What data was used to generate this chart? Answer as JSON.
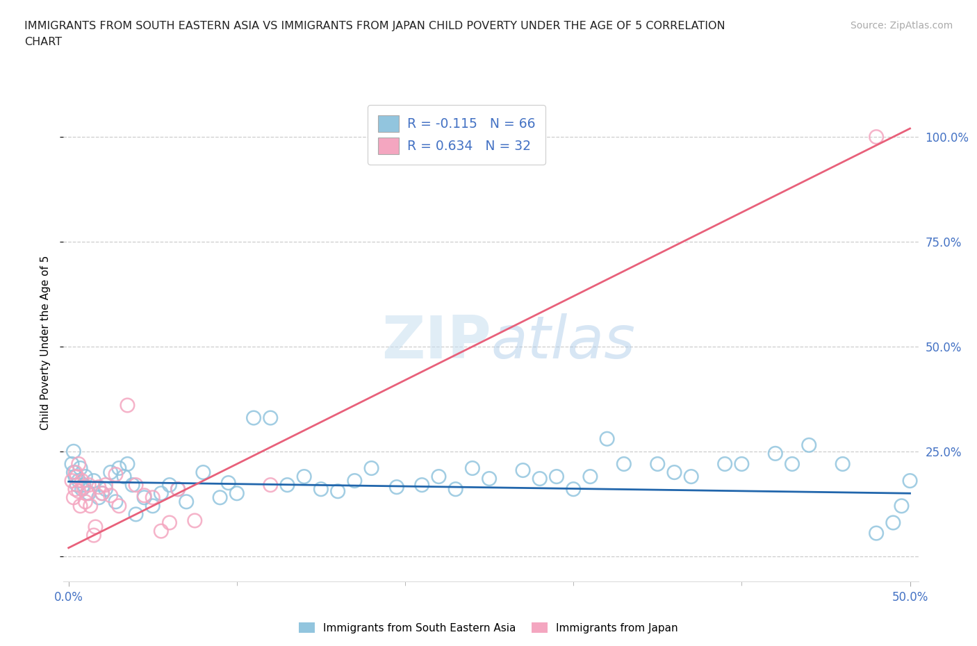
{
  "title_line1": "IMMIGRANTS FROM SOUTH EASTERN ASIA VS IMMIGRANTS FROM JAPAN CHILD POVERTY UNDER THE AGE OF 5 CORRELATION",
  "title_line2": "CHART",
  "source": "Source: ZipAtlas.com",
  "ylabel": "Child Poverty Under the Age of 5",
  "ytick_vals": [
    0.0,
    0.25,
    0.5,
    0.75,
    1.0
  ],
  "ytick_labels": [
    "",
    "25.0%",
    "50.0%",
    "75.0%",
    "100.0%"
  ],
  "xlim": [
    -0.003,
    0.505
  ],
  "ylim": [
    -0.06,
    1.08
  ],
  "color_blue": "#92c5de",
  "color_pink": "#f4a6c0",
  "color_blue_line": "#2166ac",
  "color_pink_line": "#e8607a",
  "color_axis_text": "#4472c4",
  "legend_label1": "R = -0.115   N = 66",
  "legend_label2": "R = 0.634   N = 32",
  "blue_line_x": [
    0.0,
    0.5
  ],
  "blue_line_y": [
    0.178,
    0.15
  ],
  "pink_line_x": [
    0.0,
    0.5
  ],
  "pink_line_y": [
    0.02,
    1.02
  ],
  "blue_x": [
    0.002,
    0.003,
    0.004,
    0.005,
    0.006,
    0.007,
    0.008,
    0.009,
    0.01,
    0.012,
    0.015,
    0.018,
    0.02,
    0.022,
    0.025,
    0.028,
    0.03,
    0.033,
    0.035,
    0.038,
    0.04,
    0.045,
    0.05,
    0.055,
    0.06,
    0.065,
    0.07,
    0.08,
    0.09,
    0.095,
    0.1,
    0.11,
    0.12,
    0.13,
    0.14,
    0.15,
    0.16,
    0.17,
    0.18,
    0.195,
    0.21,
    0.22,
    0.23,
    0.24,
    0.25,
    0.27,
    0.28,
    0.29,
    0.3,
    0.31,
    0.32,
    0.33,
    0.35,
    0.36,
    0.37,
    0.39,
    0.4,
    0.42,
    0.43,
    0.44,
    0.46,
    0.48,
    0.49,
    0.5,
    0.495,
    0.003
  ],
  "blue_y": [
    0.22,
    0.2,
    0.19,
    0.17,
    0.18,
    0.21,
    0.16,
    0.17,
    0.19,
    0.15,
    0.18,
    0.14,
    0.15,
    0.16,
    0.2,
    0.13,
    0.21,
    0.19,
    0.22,
    0.17,
    0.1,
    0.14,
    0.12,
    0.15,
    0.17,
    0.16,
    0.13,
    0.2,
    0.14,
    0.175,
    0.15,
    0.33,
    0.33,
    0.17,
    0.19,
    0.16,
    0.155,
    0.18,
    0.21,
    0.165,
    0.17,
    0.19,
    0.16,
    0.21,
    0.185,
    0.205,
    0.185,
    0.19,
    0.16,
    0.19,
    0.28,
    0.22,
    0.22,
    0.2,
    0.19,
    0.22,
    0.22,
    0.245,
    0.22,
    0.265,
    0.22,
    0.055,
    0.08,
    0.18,
    0.12,
    0.25
  ],
  "pink_x": [
    0.002,
    0.003,
    0.004,
    0.004,
    0.005,
    0.006,
    0.006,
    0.007,
    0.008,
    0.009,
    0.01,
    0.011,
    0.012,
    0.013,
    0.015,
    0.016,
    0.018,
    0.02,
    0.022,
    0.025,
    0.028,
    0.03,
    0.035,
    0.04,
    0.045,
    0.05,
    0.055,
    0.06,
    0.065,
    0.075,
    0.12,
    0.48
  ],
  "pink_y": [
    0.18,
    0.14,
    0.2,
    0.16,
    0.19,
    0.155,
    0.22,
    0.12,
    0.18,
    0.165,
    0.13,
    0.15,
    0.17,
    0.12,
    0.05,
    0.07,
    0.165,
    0.15,
    0.17,
    0.145,
    0.195,
    0.12,
    0.36,
    0.17,
    0.145,
    0.14,
    0.06,
    0.08,
    0.16,
    0.085,
    0.17,
    1.0
  ]
}
